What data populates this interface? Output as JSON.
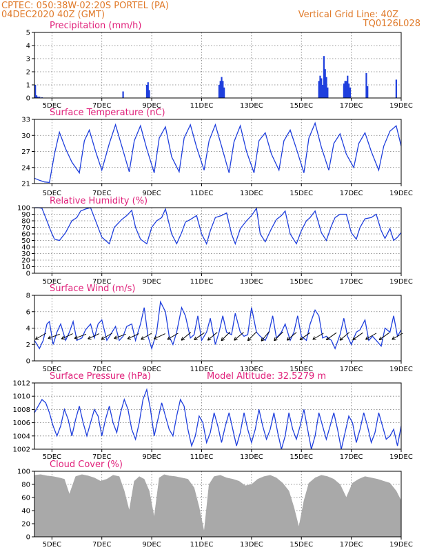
{
  "header": {
    "line1_left": "CPTEC:    050:38W-02:20S    PORTEL (PA)",
    "line2_left": "04DEC2020 40Z (GMT)",
    "line1_right": "Vertical Grid Line: 40Z",
    "line2_right": "TQ0126L028"
  },
  "x_ticks": [
    "5DEC",
    "7DEC",
    "9DEC",
    "11DEC",
    "13DEC",
    "15DEC",
    "17DEC",
    "19DEC"
  ],
  "colors": {
    "header": "#e07a2a",
    "title": "#e0207a",
    "series": "#1f3fdd",
    "cloud": "#a9a9a9",
    "arrow": "#000000"
  },
  "chart_data": [
    {
      "type": "bar",
      "title": "Precipitation (mm/h)",
      "ylim": [
        0,
        5
      ],
      "yticks": [
        "0",
        "1",
        "2",
        "3",
        "4",
        "5"
      ],
      "x_range": [
        4.3,
        19.0
      ],
      "x": [
        4.33,
        4.38,
        4.43,
        4.5,
        4.6,
        7.85,
        8.8,
        8.85,
        8.9,
        11.7,
        11.75,
        11.8,
        11.85,
        11.9,
        15.7,
        15.75,
        15.8,
        15.85,
        15.9,
        15.95,
        16.0,
        16.05,
        16.7,
        16.75,
        16.8,
        16.85,
        16.9,
        16.95,
        17.6,
        17.65,
        18.8
      ],
      "values": [
        1.0,
        0.2,
        0.1,
        0.1,
        0.05,
        0.5,
        1.0,
        1.2,
        0.6,
        1.0,
        1.3,
        1.6,
        1.3,
        0.8,
        1.3,
        1.7,
        1.5,
        1.0,
        3.2,
        2.2,
        1.6,
        0.8,
        1.1,
        1.3,
        1.3,
        1.7,
        1.1,
        0.8,
        1.9,
        0.9,
        1.4
      ]
    },
    {
      "type": "line",
      "title": "Surface Temperature (nC)",
      "ylim": [
        21,
        33
      ],
      "yticks": [
        "21",
        "24",
        "27",
        "30",
        "33"
      ],
      "x_range": [
        4.3,
        19.0
      ],
      "x": [
        4.3,
        4.5,
        4.7,
        4.9,
        5.1,
        5.3,
        5.55,
        5.8,
        6.1,
        6.3,
        6.5,
        6.75,
        7.0,
        7.3,
        7.55,
        7.8,
        8.1,
        8.3,
        8.55,
        8.8,
        9.1,
        9.3,
        9.55,
        9.8,
        10.1,
        10.3,
        10.55,
        10.8,
        11.1,
        11.3,
        11.55,
        11.8,
        12.1,
        12.3,
        12.55,
        12.8,
        13.1,
        13.3,
        13.55,
        13.8,
        14.1,
        14.3,
        14.55,
        14.8,
        15.1,
        15.3,
        15.55,
        15.8,
        16.1,
        16.3,
        16.55,
        16.8,
        17.1,
        17.3,
        17.55,
        17.8,
        18.1,
        18.3,
        18.55,
        18.8,
        19.0
      ],
      "values": [
        22.0,
        21.6,
        21.3,
        21.2,
        26.5,
        30.6,
        27.5,
        25.0,
        23.0,
        29.0,
        31.0,
        27.0,
        23.5,
        28.5,
        32.0,
        28.0,
        23.2,
        29.0,
        31.8,
        27.5,
        23.0,
        29.5,
        31.6,
        26.0,
        23.2,
        29.5,
        32.0,
        27.8,
        23.5,
        29.0,
        32.0,
        28.0,
        23.0,
        28.8,
        31.8,
        27.0,
        23.0,
        29.0,
        30.5,
        26.5,
        23.5,
        29.0,
        31.0,
        27.5,
        23.0,
        29.5,
        32.3,
        27.8,
        23.5,
        28.5,
        30.3,
        26.5,
        24.0,
        28.5,
        30.5,
        27.0,
        23.5,
        28.0,
        30.8,
        31.8,
        28.0
      ]
    },
    {
      "type": "line",
      "title": "Relative Humidity (%)",
      "ylim": [
        0,
        100
      ],
      "yticks": [
        "0",
        "10",
        "20",
        "30",
        "40",
        "50",
        "60",
        "70",
        "80",
        "90",
        "100"
      ],
      "x_range": [
        4.3,
        19.0
      ],
      "x": [
        4.3,
        4.45,
        4.6,
        4.8,
        4.95,
        5.1,
        5.3,
        5.55,
        5.8,
        6.0,
        6.15,
        6.35,
        6.55,
        6.75,
        7.0,
        7.3,
        7.5,
        7.8,
        8.0,
        8.2,
        8.35,
        8.55,
        8.8,
        9.0,
        9.2,
        9.4,
        9.55,
        9.8,
        10.0,
        10.2,
        10.35,
        10.55,
        10.8,
        11.0,
        11.2,
        11.35,
        11.55,
        11.8,
        12.0,
        12.2,
        12.35,
        12.55,
        12.8,
        13.0,
        13.2,
        13.35,
        13.55,
        13.8,
        14.0,
        14.2,
        14.35,
        14.55,
        14.8,
        15.0,
        15.2,
        15.35,
        15.55,
        15.8,
        16.0,
        16.2,
        16.35,
        16.55,
        16.8,
        17.0,
        17.2,
        17.35,
        17.55,
        17.8,
        18.0,
        18.2,
        18.35,
        18.55,
        18.7,
        18.85,
        19.0
      ],
      "values": [
        100,
        100,
        99,
        80,
        65,
        52,
        50,
        62,
        80,
        85,
        95,
        98,
        100,
        80,
        55,
        45,
        70,
        82,
        88,
        96,
        70,
        52,
        45,
        70,
        80,
        85,
        98,
        60,
        45,
        62,
        78,
        82,
        88,
        60,
        45,
        65,
        85,
        88,
        92,
        60,
        45,
        68,
        80,
        88,
        99,
        60,
        48,
        68,
        82,
        88,
        95,
        60,
        45,
        65,
        80,
        85,
        95,
        62,
        50,
        72,
        85,
        90,
        90,
        62,
        52,
        70,
        83,
        85,
        90,
        65,
        53,
        68,
        50,
        55,
        62
      ]
    },
    {
      "type": "line",
      "title": "Surface Wind (m/s)",
      "ylim": [
        0,
        8
      ],
      "yticks": [
        "0",
        "2",
        "4",
        "6",
        "8"
      ],
      "x_range": [
        4.3,
        19.0
      ],
      "x": [
        4.3,
        4.5,
        4.65,
        4.8,
        4.9,
        5.05,
        5.2,
        5.35,
        5.55,
        5.7,
        5.85,
        6.0,
        6.2,
        6.35,
        6.55,
        6.7,
        6.85,
        7.0,
        7.2,
        7.35,
        7.55,
        7.7,
        7.85,
        8.0,
        8.2,
        8.35,
        8.55,
        8.7,
        8.85,
        9.0,
        9.2,
        9.35,
        9.55,
        9.7,
        9.85,
        10.0,
        10.2,
        10.35,
        10.55,
        10.7,
        10.85,
        11.0,
        11.2,
        11.35,
        11.55,
        11.7,
        11.85,
        12.0,
        12.2,
        12.35,
        12.55,
        12.7,
        12.85,
        13.0,
        13.2,
        13.35,
        13.55,
        13.7,
        13.85,
        14.0,
        14.2,
        14.35,
        14.55,
        14.7,
        14.85,
        15.0,
        15.2,
        15.35,
        15.55,
        15.7,
        15.85,
        16.0,
        16.2,
        16.35,
        16.55,
        16.7,
        16.85,
        17.0,
        17.2,
        17.35,
        17.55,
        17.7,
        17.85,
        18.0,
        18.2,
        18.35,
        18.55,
        18.7,
        18.85,
        19.0
      ],
      "values": [
        2.5,
        1.5,
        2.5,
        4.5,
        4.8,
        2.0,
        3.5,
        4.5,
        2.5,
        3.5,
        4.8,
        2.5,
        2.8,
        3.8,
        4.5,
        2.8,
        4.5,
        5.0,
        2.5,
        3.2,
        4.2,
        2.5,
        3.0,
        4.2,
        4.5,
        2.5,
        4.5,
        6.5,
        3.0,
        1.5,
        3.5,
        7.2,
        6.0,
        3.0,
        2.0,
        3.5,
        6.5,
        5.5,
        2.8,
        3.2,
        5.5,
        2.5,
        3.5,
        5.2,
        2.0,
        3.5,
        5.5,
        3.5,
        3.2,
        5.8,
        3.5,
        3.0,
        3.2,
        6.5,
        3.5,
        3.0,
        2.5,
        3.5,
        5.5,
        2.8,
        3.5,
        4.5,
        2.5,
        3.5,
        5.5,
        3.0,
        2.5,
        4.5,
        6.2,
        5.5,
        2.8,
        3.0,
        2.5,
        1.5,
        3.2,
        5.2,
        3.0,
        2.0,
        3.5,
        3.8,
        5.0,
        2.5,
        3.0,
        2.5,
        1.8,
        4.0,
        3.5,
        5.5,
        3.0,
        3.8
      ]
    },
    {
      "type": "line",
      "title": "Surface Pressure (hPa)",
      "ylim": [
        1002,
        1012
      ],
      "yticks": [
        "1002",
        "1004",
        "1006",
        "1008",
        "1010",
        "1012"
      ],
      "x_range": [
        4.3,
        19.0
      ],
      "x": [
        4.3,
        4.45,
        4.6,
        4.75,
        4.9,
        5.05,
        5.2,
        5.35,
        5.5,
        5.65,
        5.8,
        5.95,
        6.1,
        6.25,
        6.4,
        6.55,
        6.7,
        6.85,
        7.0,
        7.15,
        7.3,
        7.45,
        7.6,
        7.75,
        7.9,
        8.05,
        8.2,
        8.35,
        8.5,
        8.65,
        8.8,
        8.95,
        9.1,
        9.25,
        9.4,
        9.55,
        9.7,
        9.85,
        10.0,
        10.15,
        10.3,
        10.45,
        10.6,
        10.75,
        10.9,
        11.05,
        11.2,
        11.35,
        11.5,
        11.65,
        11.8,
        11.95,
        12.1,
        12.25,
        12.4,
        12.55,
        12.7,
        12.85,
        13.0,
        13.15,
        13.3,
        13.45,
        13.6,
        13.75,
        13.9,
        14.05,
        14.2,
        14.35,
        14.5,
        14.65,
        14.8,
        14.95,
        15.1,
        15.25,
        15.4,
        15.55,
        15.7,
        15.85,
        16.0,
        16.15,
        16.3,
        16.45,
        16.6,
        16.75,
        16.9,
        17.05,
        17.2,
        17.35,
        17.5,
        17.65,
        17.8,
        17.95,
        18.1,
        18.25,
        18.4,
        18.55,
        18.7,
        18.85,
        19.0
      ],
      "values": [
        1007.5,
        1008.5,
        1009.5,
        1009.0,
        1007.5,
        1005.5,
        1004.0,
        1005.5,
        1008.0,
        1006.5,
        1004.0,
        1006.5,
        1008.5,
        1006.0,
        1004.0,
        1006.0,
        1008.0,
        1007.0,
        1004.0,
        1006.5,
        1008.5,
        1006.0,
        1004.5,
        1007.5,
        1009.5,
        1008.0,
        1005.0,
        1003.5,
        1006.0,
        1009.5,
        1011.0,
        1008.0,
        1004.0,
        1006.5,
        1009.0,
        1007.0,
        1005.0,
        1004.0,
        1007.0,
        1009.5,
        1008.5,
        1005.0,
        1002.5,
        1004.0,
        1007.0,
        1006.0,
        1003.0,
        1004.5,
        1007.5,
        1005.5,
        1003.0,
        1005.5,
        1007.5,
        1005.0,
        1002.5,
        1004.5,
        1007.5,
        1005.0,
        1003.0,
        1005.0,
        1008.0,
        1005.5,
        1003.5,
        1005.0,
        1007.5,
        1004.5,
        1002.0,
        1004.0,
        1007.5,
        1005.0,
        1003.5,
        1005.5,
        1008.0,
        1005.0,
        1002.0,
        1004.0,
        1007.5,
        1005.5,
        1003.5,
        1005.5,
        1007.5,
        1005.0,
        1002.0,
        1004.5,
        1007.0,
        1006.0,
        1003.0,
        1005.0,
        1007.5,
        1005.5,
        1003.0,
        1004.5,
        1007.5,
        1005.5,
        1003.5,
        1004.0,
        1005.0,
        1002.5,
        1005.5
      ]
    },
    {
      "type": "area",
      "title": "Cloud Cover (%)",
      "ylim": [
        0,
        100
      ],
      "yticks": [
        "0",
        "20",
        "40",
        "60",
        "80",
        "100"
      ],
      "x_range": [
        4.3,
        19.0
      ],
      "x": [
        4.3,
        4.55,
        4.8,
        5.05,
        5.3,
        5.5,
        5.7,
        5.95,
        6.2,
        6.45,
        6.7,
        6.95,
        7.2,
        7.45,
        7.7,
        7.9,
        8.1,
        8.3,
        8.5,
        8.7,
        8.9,
        9.1,
        9.3,
        9.5,
        9.7,
        9.95,
        10.2,
        10.45,
        10.7,
        10.9,
        11.1,
        11.3,
        11.5,
        11.75,
        12.0,
        12.25,
        12.5,
        12.75,
        13.0,
        13.25,
        13.5,
        13.75,
        14.0,
        14.25,
        14.5,
        14.7,
        14.9,
        15.1,
        15.3,
        15.55,
        15.8,
        16.05,
        16.3,
        16.55,
        16.8,
        17.05,
        17.3,
        17.55,
        17.8,
        18.05,
        18.3,
        18.55,
        18.8,
        19.0
      ],
      "values": [
        94,
        95,
        93,
        92,
        90,
        88,
        65,
        92,
        95,
        93,
        90,
        85,
        88,
        94,
        92,
        70,
        40,
        85,
        92,
        88,
        70,
        30,
        90,
        95,
        93,
        92,
        90,
        88,
        75,
        45,
        8,
        80,
        92,
        94,
        90,
        88,
        85,
        78,
        80,
        88,
        92,
        94,
        90,
        82,
        70,
        45,
        15,
        55,
        82,
        90,
        94,
        92,
        88,
        80,
        60,
        82,
        88,
        92,
        90,
        88,
        85,
        82,
        70,
        55
      ]
    }
  ],
  "wind_arrows_deg": [
    -30,
    -20,
    -25,
    -20,
    -25,
    -30,
    -20,
    -25,
    -30,
    -25,
    -30,
    -40,
    -35,
    -40,
    -45,
    -40,
    -45,
    -50,
    -45,
    -40,
    -35,
    -30,
    -35,
    -40,
    -35,
    -30,
    -35,
    -30
  ],
  "altitude_label": "Model Altitude: 32.5279 m"
}
